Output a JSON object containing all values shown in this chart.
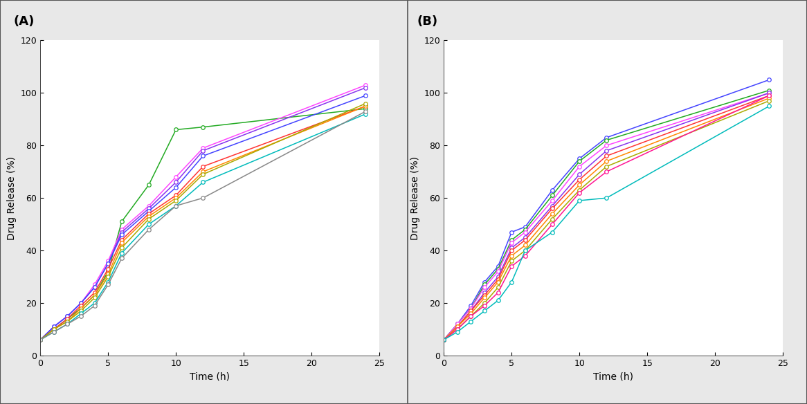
{
  "panel_A": {
    "title": "(A)",
    "series": [
      {
        "color": "#22AA22",
        "x": [
          0,
          1,
          2,
          3,
          4,
          5,
          6,
          8,
          10,
          12,
          24
        ],
        "y": [
          6,
          10,
          14,
          18,
          23,
          32,
          51,
          65,
          86,
          87,
          94
        ]
      },
      {
        "color": "#FF44FF",
        "x": [
          0,
          1,
          2,
          3,
          4,
          5,
          6,
          8,
          10,
          12,
          24
        ],
        "y": [
          6,
          11,
          15,
          20,
          27,
          36,
          48,
          57,
          68,
          79,
          103
        ]
      },
      {
        "color": "#8833EE",
        "x": [
          0,
          1,
          2,
          3,
          4,
          5,
          6,
          8,
          10,
          12,
          24
        ],
        "y": [
          6,
          11,
          15,
          20,
          26,
          35,
          47,
          56,
          66,
          78,
          102
        ]
      },
      {
        "color": "#4444FF",
        "x": [
          0,
          1,
          2,
          3,
          4,
          5,
          6,
          8,
          10,
          12,
          24
        ],
        "y": [
          6,
          11,
          15,
          20,
          26,
          35,
          46,
          55,
          64,
          76,
          99
        ]
      },
      {
        "color": "#FF3333",
        "x": [
          0,
          1,
          2,
          3,
          4,
          5,
          6,
          8,
          10,
          12,
          24
        ],
        "y": [
          6,
          10,
          14,
          19,
          24,
          33,
          44,
          54,
          61,
          72,
          95
        ]
      },
      {
        "color": "#FF8800",
        "x": [
          0,
          1,
          2,
          3,
          4,
          5,
          6,
          8,
          10,
          12,
          24
        ],
        "y": [
          6,
          10,
          13,
          18,
          23,
          31,
          43,
          53,
          60,
          70,
          95
        ]
      },
      {
        "color": "#AAAA00",
        "x": [
          0,
          1,
          2,
          3,
          4,
          5,
          6,
          8,
          10,
          12,
          24
        ],
        "y": [
          6,
          10,
          13,
          17,
          22,
          30,
          41,
          52,
          59,
          69,
          96
        ]
      },
      {
        "color": "#00BBBB",
        "x": [
          0,
          1,
          2,
          3,
          4,
          5,
          6,
          8,
          10,
          12,
          24
        ],
        "y": [
          6,
          9,
          12,
          16,
          20,
          28,
          39,
          50,
          57,
          66,
          92
        ]
      },
      {
        "color": "#888888",
        "x": [
          0,
          1,
          2,
          3,
          4,
          5,
          6,
          8,
          10,
          12,
          24
        ],
        "y": [
          6,
          9,
          12,
          15,
          19,
          27,
          37,
          48,
          57,
          60,
          93
        ]
      }
    ]
  },
  "panel_B": {
    "title": "(B)",
    "series": [
      {
        "color": "#4444FF",
        "x": [
          0,
          1,
          2,
          3,
          4,
          5,
          6,
          8,
          10,
          12,
          24
        ],
        "y": [
          6,
          12,
          19,
          28,
          34,
          47,
          49,
          63,
          75,
          83,
          105
        ]
      },
      {
        "color": "#22AA22",
        "x": [
          0,
          1,
          2,
          3,
          4,
          5,
          6,
          8,
          10,
          12,
          24
        ],
        "y": [
          6,
          12,
          18,
          27,
          33,
          44,
          48,
          61,
          74,
          82,
          101
        ]
      },
      {
        "color": "#FF44FF",
        "x": [
          0,
          1,
          2,
          3,
          4,
          5,
          6,
          8,
          10,
          12,
          24
        ],
        "y": [
          6,
          12,
          18,
          26,
          32,
          43,
          47,
          59,
          72,
          80,
          100
        ]
      },
      {
        "color": "#8833EE",
        "x": [
          0,
          1,
          2,
          3,
          4,
          5,
          6,
          8,
          10,
          12,
          24
        ],
        "y": [
          6,
          11,
          17,
          24,
          30,
          41,
          45,
          57,
          69,
          78,
          100
        ]
      },
      {
        "color": "#FF3333",
        "x": [
          0,
          1,
          2,
          3,
          4,
          5,
          6,
          8,
          10,
          12,
          24
        ],
        "y": [
          6,
          11,
          17,
          23,
          29,
          40,
          44,
          56,
          67,
          76,
          99
        ]
      },
      {
        "color": "#FF8800",
        "x": [
          0,
          1,
          2,
          3,
          4,
          5,
          6,
          8,
          10,
          12,
          24
        ],
        "y": [
          6,
          11,
          16,
          22,
          28,
          38,
          42,
          54,
          65,
          74,
          98
        ]
      },
      {
        "color": "#AAAA00",
        "x": [
          0,
          1,
          2,
          3,
          4,
          5,
          6,
          8,
          10,
          12,
          24
        ],
        "y": [
          6,
          10,
          15,
          20,
          26,
          36,
          40,
          52,
          63,
          72,
          97
        ]
      },
      {
        "color": "#FF1493",
        "x": [
          0,
          1,
          2,
          3,
          4,
          5,
          6,
          8,
          10,
          12,
          24
        ],
        "y": [
          6,
          10,
          15,
          19,
          24,
          34,
          38,
          50,
          62,
          70,
          99
        ]
      },
      {
        "color": "#00BBBB",
        "x": [
          0,
          1,
          2,
          3,
          4,
          5,
          6,
          8,
          10,
          12,
          24
        ],
        "y": [
          6,
          9,
          13,
          17,
          21,
          28,
          40,
          47,
          59,
          60,
          95
        ]
      }
    ]
  },
  "xlabel": "Time (h)",
  "ylabel": "Drug Release (%)",
  "xlim": [
    0,
    25
  ],
  "ylim": [
    0,
    120
  ],
  "yticks": [
    0,
    20,
    40,
    60,
    80,
    100,
    120
  ],
  "xticks": [
    0,
    5,
    10,
    15,
    20,
    25
  ],
  "bg_color": "#E8E8E8",
  "plot_bg": "#FFFFFF",
  "label_fontsize": 10,
  "tick_fontsize": 9,
  "title_fontsize": 13,
  "line_width": 1.1,
  "marker_size": 4
}
